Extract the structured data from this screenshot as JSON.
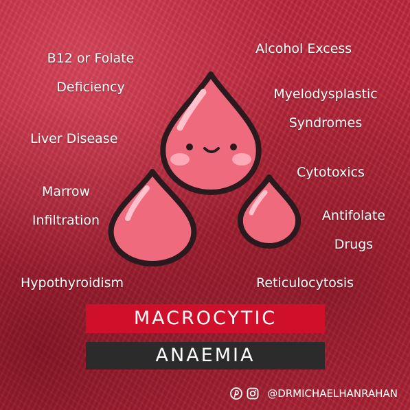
{
  "causes": [
    {
      "id": "b12-folate",
      "lines": [
        "B12 or Folate",
        "Deficiency"
      ]
    },
    {
      "id": "liver",
      "lines": [
        "Liver Disease"
      ]
    },
    {
      "id": "marrow",
      "lines": [
        "Marrow",
        "Infiltration"
      ]
    },
    {
      "id": "hypothyroidism",
      "lines": [
        "Hypothyroidism"
      ]
    },
    {
      "id": "alcohol",
      "lines": [
        "Alcohol Excess"
      ]
    },
    {
      "id": "myelodysplastic",
      "lines": [
        "Myelodysplastic",
        "Syndromes"
      ]
    },
    {
      "id": "cytotoxics",
      "lines": [
        "Cytotoxics"
      ]
    },
    {
      "id": "antifolate",
      "lines": [
        "Antifolate",
        "Drugs"
      ]
    },
    {
      "id": "reticulocytosis",
      "lines": [
        "Reticulocytosis"
      ]
    }
  ],
  "title": {
    "line1": "MACROCYTIC",
    "line2": "ANAEMIA"
  },
  "footer": {
    "handle": "@DRMICHAELHANRAHAN",
    "icons": [
      "pinterest-icon",
      "instagram-icon"
    ]
  },
  "colors": {
    "background": "#c0283d",
    "drop": "#f26a7e",
    "drop_dark": "#e04860",
    "banner_red": "#d0102a",
    "banner_dark": "#2b2b2b"
  }
}
